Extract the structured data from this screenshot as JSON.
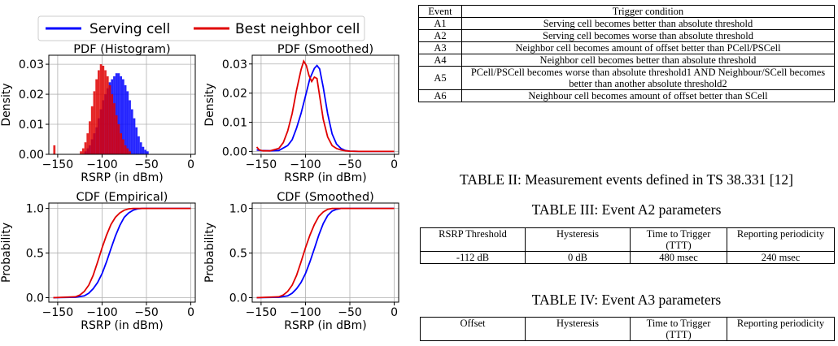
{
  "legend": {
    "serving": "Serving cell",
    "neighbor": "Best neighbor cell",
    "serving_color": "#0000ff",
    "neighbor_color": "#e00000"
  },
  "chart_data": [
    {
      "type": "histogram",
      "title": "PDF (Histogram)",
      "xlabel": "RSRP (in dBm)",
      "ylabel": "Density",
      "xlim": [
        -160,
        5
      ],
      "ylim": [
        0,
        0.033
      ],
      "xticks": [
        -150,
        -100,
        -50,
        0
      ],
      "yticks": [
        0.0,
        0.01,
        0.02,
        0.03
      ],
      "ytick_labels": [
        "0.00",
        "0.01",
        "0.02",
        "0.03"
      ],
      "grid": true,
      "bin_width": 2.5,
      "series": [
        {
          "name": "Serving cell",
          "bins_start": -120,
          "values": [
            0.001,
            0.002,
            0.003,
            0.005,
            0.007,
            0.009,
            0.012,
            0.015,
            0.018,
            0.02,
            0.022,
            0.024,
            0.025,
            0.026,
            0.027,
            0.027,
            0.026,
            0.025,
            0.023,
            0.021,
            0.018,
            0.015,
            0.012,
            0.009,
            0.006,
            0.004,
            0.0025,
            0.0015,
            0.001
          ]
        },
        {
          "name": "Best neighbor cell",
          "bins_start": -125,
          "values": [
            0.001,
            0.002,
            0.004,
            0.007,
            0.011,
            0.016,
            0.021,
            0.025,
            0.028,
            0.03,
            0.0295,
            0.028,
            0.026,
            0.023,
            0.02,
            0.017,
            0.013,
            0.01,
            0.007,
            0.005,
            0.003,
            0.002,
            0.001
          ],
          "outlier": {
            "x": -155,
            "value": 0.003
          }
        }
      ]
    },
    {
      "type": "line",
      "title": "PDF (Smoothed)",
      "xlabel": "RSRP (in dBm)",
      "ylabel": "Density",
      "xlim": [
        -160,
        5
      ],
      "ylim": [
        -0.001,
        0.033
      ],
      "xticks": [
        -150,
        -100,
        -50,
        0
      ],
      "yticks": [
        0.0,
        0.01,
        0.02,
        0.03
      ],
      "ytick_labels": [
        "0.00",
        "0.01",
        "0.02",
        "0.03"
      ],
      "grid": true,
      "series": [
        {
          "name": "Serving cell",
          "x": [
            -155,
            -150,
            -140,
            -130,
            -120,
            -115,
            -110,
            -105,
            -100,
            -95,
            -90,
            -87,
            -84,
            -80,
            -75,
            -70,
            -65,
            -60,
            -55,
            -50,
            -40,
            -30,
            -20,
            -10,
            0
          ],
          "y": [
            0.0005,
            0.0003,
            0.0002,
            0.0003,
            0.002,
            0.004,
            0.008,
            0.013,
            0.019,
            0.025,
            0.0285,
            0.0295,
            0.0283,
            0.022,
            0.013,
            0.006,
            0.0025,
            0.001,
            0.0003,
            0.0001,
            0,
            0,
            0,
            0,
            0
          ]
        },
        {
          "name": "Best neighbor cell",
          "x": [
            -155,
            -152,
            -148,
            -140,
            -130,
            -125,
            -120,
            -115,
            -110,
            -105,
            -102,
            -99,
            -96,
            -93,
            -90,
            -87,
            -84,
            -80,
            -75,
            -70,
            -65,
            -60,
            -55,
            -50,
            -40,
            -30,
            -20,
            -10,
            0
          ],
          "y": [
            0.0015,
            0.0005,
            0.0002,
            0.0002,
            0.001,
            0.003,
            0.007,
            0.013,
            0.021,
            0.028,
            0.031,
            0.0295,
            0.026,
            0.024,
            0.0255,
            0.025,
            0.019,
            0.011,
            0.005,
            0.002,
            0.001,
            0.0005,
            0.0002,
            0.0001,
            0,
            0,
            0,
            0,
            0
          ]
        }
      ]
    },
    {
      "type": "line",
      "title": "CDF (Empirical)",
      "xlabel": "RSRP (in dBm)",
      "ylabel": "Probability",
      "xlim": [
        -160,
        5
      ],
      "ylim": [
        -0.05,
        1.06
      ],
      "xticks": [
        -150,
        -100,
        -50,
        0
      ],
      "yticks": [
        0.0,
        0.5,
        1.0
      ],
      "ytick_labels": [
        "0.0",
        "0.5",
        "1.0"
      ],
      "grid": true,
      "series": [
        {
          "name": "Serving cell",
          "x": [
            -155,
            -130,
            -120,
            -115,
            -110,
            -105,
            -100,
            -95,
            -90,
            -85,
            -80,
            -75,
            -70,
            -65,
            -60,
            -55,
            -50,
            0
          ],
          "y": [
            0,
            0.005,
            0.02,
            0.05,
            0.1,
            0.17,
            0.27,
            0.4,
            0.55,
            0.69,
            0.81,
            0.9,
            0.95,
            0.98,
            0.995,
            1.0,
            1.0,
            1.0
          ]
        },
        {
          "name": "Best neighbor cell",
          "x": [
            -155,
            -130,
            -125,
            -120,
            -115,
            -110,
            -105,
            -100,
            -95,
            -90,
            -85,
            -80,
            -75,
            -70,
            -65,
            -60,
            0
          ],
          "y": [
            0,
            0.01,
            0.03,
            0.07,
            0.14,
            0.25,
            0.4,
            0.56,
            0.7,
            0.82,
            0.9,
            0.95,
            0.98,
            0.995,
            1.0,
            1.0,
            1.0
          ]
        }
      ]
    },
    {
      "type": "line",
      "title": "CDF (Smoothed)",
      "xlabel": "RSRP (in dBm)",
      "ylabel": "Probability",
      "xlim": [
        -160,
        5
      ],
      "ylim": [
        -0.05,
        1.06
      ],
      "xticks": [
        -150,
        -100,
        -50,
        0
      ],
      "yticks": [
        0.0,
        0.5,
        1.0
      ],
      "ytick_labels": [
        "0.0",
        "0.5",
        "1.0"
      ],
      "grid": true,
      "series": [
        {
          "name": "Serving cell",
          "x": [
            -155,
            -130,
            -120,
            -115,
            -110,
            -105,
            -100,
            -95,
            -90,
            -85,
            -80,
            -75,
            -70,
            -65,
            -60,
            -55,
            -50,
            0
          ],
          "y": [
            0,
            0.005,
            0.02,
            0.05,
            0.1,
            0.17,
            0.27,
            0.4,
            0.55,
            0.7,
            0.83,
            0.92,
            0.97,
            0.99,
            1.0,
            1.0,
            1.0,
            1.0
          ]
        },
        {
          "name": "Best neighbor cell",
          "x": [
            -155,
            -130,
            -125,
            -120,
            -115,
            -110,
            -105,
            -100,
            -95,
            -90,
            -85,
            -80,
            -75,
            -70,
            -65,
            -60,
            0
          ],
          "y": [
            0,
            0.01,
            0.03,
            0.07,
            0.14,
            0.25,
            0.4,
            0.56,
            0.7,
            0.82,
            0.91,
            0.96,
            0.99,
            1.0,
            1.0,
            1.0,
            1.0
          ]
        }
      ]
    }
  ],
  "events_table": {
    "headers": [
      "Event",
      "Trigger condition"
    ],
    "rows": [
      [
        "A1",
        "Serving cell becomes better than absolute threshold"
      ],
      [
        "A2",
        "Serving cell becomes worse than absolute threshold"
      ],
      [
        "A3",
        "Neighbor cell becomes amount of offset better than PCell/PSCell"
      ],
      [
        "A4",
        "Neighbor cell becomes better than absolute threshold"
      ],
      [
        "A5",
        "PCell/PSCell becomes worse than absolute threshold1 AND Neighbour/SCell becomes better than another absolute threshold2"
      ],
      [
        "A6",
        "Neighbour cell becomes amount of offset better than SCell"
      ]
    ]
  },
  "captions": {
    "table2": "TABLE II: Measurement events defined in TS 38.331 [12]",
    "table3": "TABLE III: Event A2 parameters",
    "table4": "TABLE IV: Event A3 parameters"
  },
  "a2_table": {
    "headers": [
      "RSRP Threshold",
      "Hysteresis",
      "Time to Trigger (TTT)",
      "Reporting periodicity"
    ],
    "row": [
      "-112 dB",
      "0 dB",
      "480 msec",
      "240 msec"
    ]
  },
  "a3_table": {
    "headers": [
      "Offset",
      "Hysteresis",
      "Time to Trigger (TTT)",
      "Reporting periodicity"
    ]
  }
}
